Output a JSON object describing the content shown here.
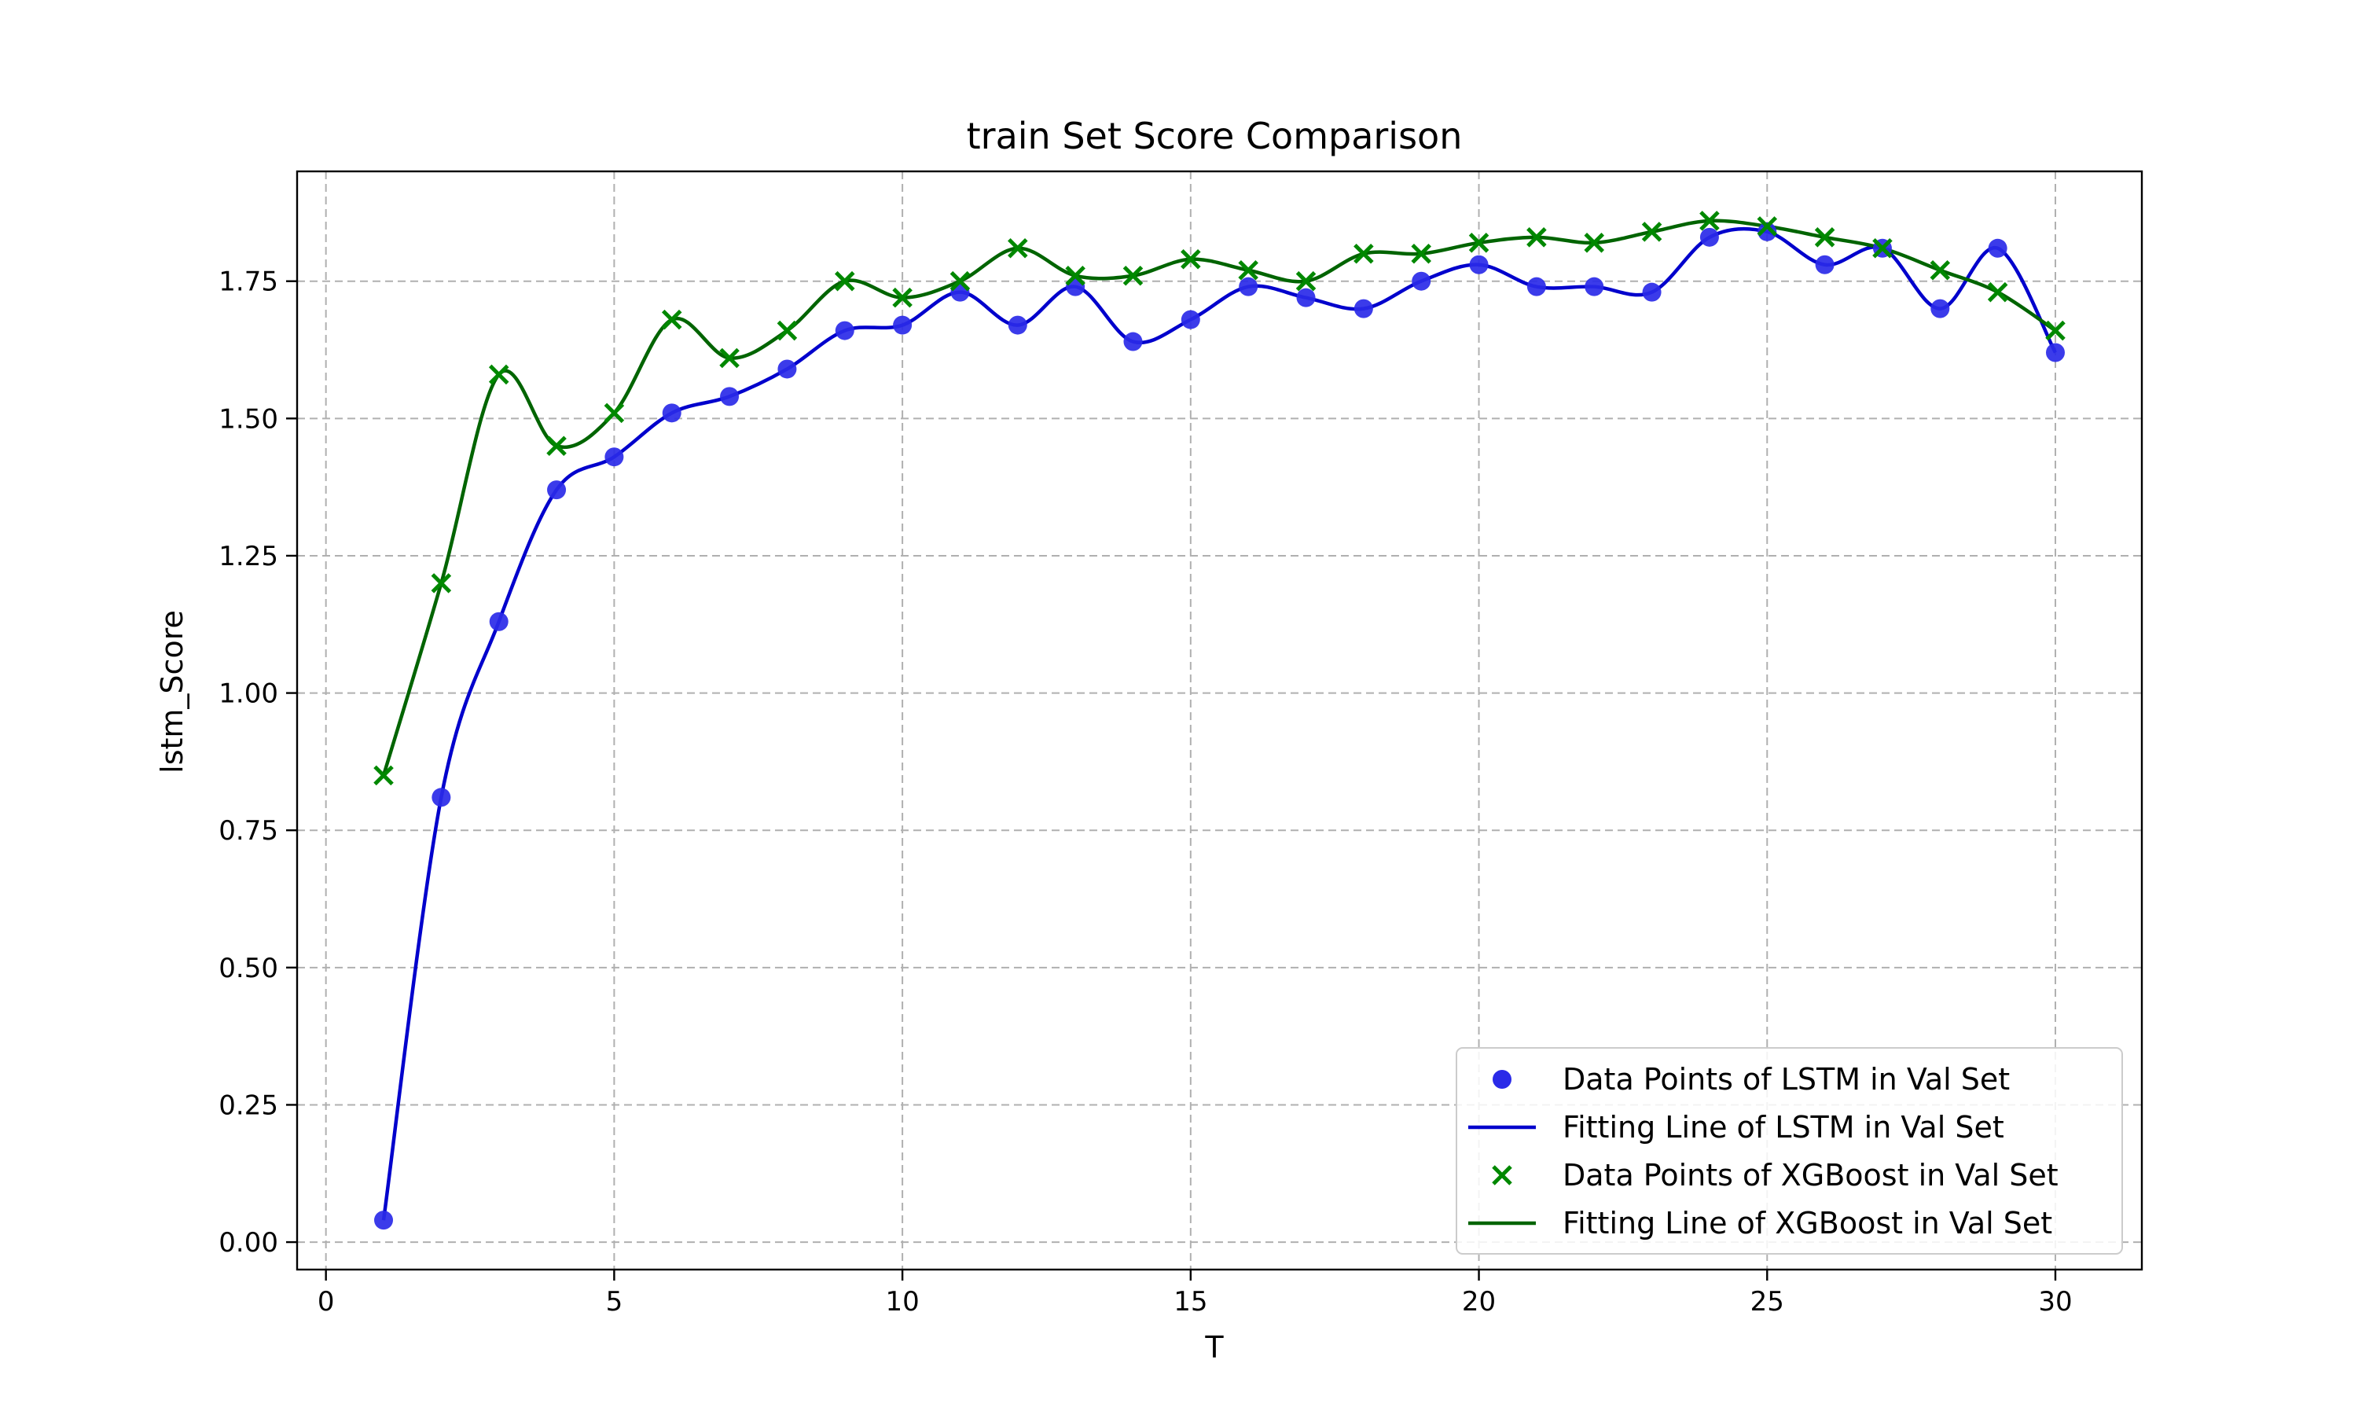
{
  "chart_data": {
    "type": "line",
    "title": "train Set Score Comparison",
    "xlabel": "T",
    "ylabel": "lstm_Score",
    "xlim": [
      -0.5,
      31.5
    ],
    "ylim": [
      -0.05,
      1.95
    ],
    "xticks": [
      0,
      5,
      10,
      15,
      20,
      25,
      30
    ],
    "yticks": [
      0.0,
      0.25,
      0.5,
      0.75,
      1.0,
      1.25,
      1.5,
      1.75
    ],
    "ytick_labels": [
      "0.00",
      "0.25",
      "0.50",
      "0.75",
      "1.00",
      "1.25",
      "1.50",
      "1.75"
    ],
    "grid": true,
    "legend_position": "lower-right",
    "x": [
      1,
      2,
      3,
      4,
      5,
      6,
      7,
      8,
      9,
      10,
      11,
      12,
      13,
      14,
      15,
      16,
      17,
      18,
      19,
      20,
      21,
      22,
      23,
      24,
      25,
      26,
      27,
      28,
      29,
      30
    ],
    "series": [
      {
        "name": "Data Points of LSTM in Val Set",
        "kind": "scatter",
        "marker": "circle",
        "color": "#2a2ae8",
        "values": [
          0.04,
          0.81,
          1.13,
          1.37,
          1.43,
          1.51,
          1.54,
          1.59,
          1.66,
          1.67,
          1.73,
          1.67,
          1.74,
          1.64,
          1.68,
          1.74,
          1.72,
          1.7,
          1.75,
          1.78,
          1.74,
          1.74,
          1.73,
          1.83,
          1.84,
          1.78,
          1.81,
          1.7,
          1.81,
          1.62
        ]
      },
      {
        "name": "Fitting Line of LSTM in Val Set",
        "kind": "line",
        "color": "#0000cc",
        "values": [
          0.04,
          0.81,
          1.13,
          1.37,
          1.43,
          1.51,
          1.54,
          1.59,
          1.66,
          1.67,
          1.73,
          1.67,
          1.74,
          1.64,
          1.68,
          1.74,
          1.72,
          1.7,
          1.75,
          1.78,
          1.74,
          1.74,
          1.73,
          1.83,
          1.84,
          1.78,
          1.81,
          1.7,
          1.81,
          1.62
        ]
      },
      {
        "name": "Data Points of XGBoost in Val Set",
        "kind": "scatter",
        "marker": "x",
        "color": "#008800",
        "values": [
          0.85,
          1.2,
          1.58,
          1.45,
          1.51,
          1.68,
          1.61,
          1.66,
          1.75,
          1.72,
          1.75,
          1.81,
          1.76,
          1.76,
          1.79,
          1.77,
          1.75,
          1.8,
          1.8,
          1.82,
          1.83,
          1.82,
          1.84,
          1.86,
          1.85,
          1.83,
          1.81,
          1.77,
          1.73,
          1.66
        ]
      },
      {
        "name": "Fitting Line of XGBoost in Val Set",
        "kind": "line",
        "color": "#006400",
        "values": [
          0.85,
          1.2,
          1.58,
          1.45,
          1.51,
          1.68,
          1.61,
          1.66,
          1.75,
          1.72,
          1.75,
          1.81,
          1.76,
          1.76,
          1.79,
          1.77,
          1.75,
          1.8,
          1.8,
          1.82,
          1.83,
          1.82,
          1.84,
          1.86,
          1.85,
          1.83,
          1.81,
          1.77,
          1.73,
          1.66
        ]
      }
    ]
  }
}
